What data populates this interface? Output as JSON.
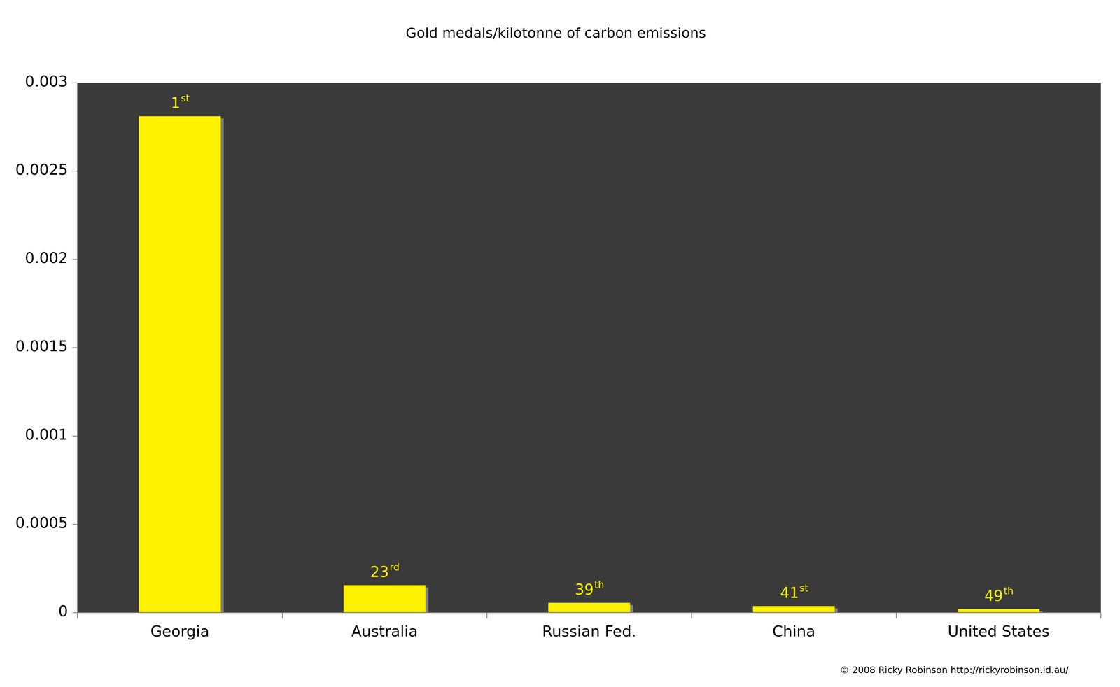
{
  "chart_data": {
    "type": "bar",
    "title": "Gold medals/kilotonne of carbon emissions",
    "categories": [
      "Georgia",
      "Australia",
      "Russian Fed.",
      "China",
      "United States"
    ],
    "values": [
      0.00281,
      0.000155,
      5.5e-05,
      3.7e-05,
      2e-05
    ],
    "color": "#fff200",
    "ylim": [
      0,
      0.003
    ],
    "yticks": [
      0,
      0.0005,
      0.001,
      0.0015,
      0.002,
      0.0025,
      0.003
    ],
    "grid": false,
    "annotations": [
      "1st",
      "23rd",
      "39th",
      "41st",
      "49th"
    ],
    "caption": "© 2008 Ricky Robinson http://rickyrobinson.id.au/"
  }
}
